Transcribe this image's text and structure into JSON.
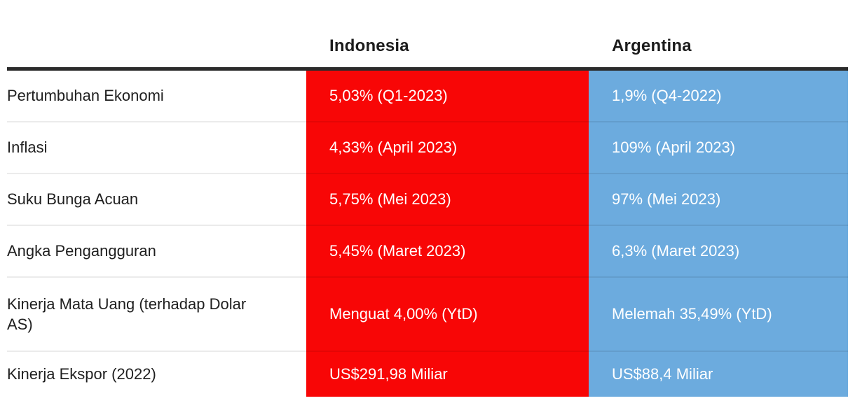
{
  "chart_data": {
    "type": "table",
    "title": "",
    "columns": [
      "",
      "Indonesia",
      "Argentina"
    ],
    "rows": [
      [
        "Pertumbuhan Ekonomi",
        "5,03% (Q1-2023)",
        "1,9% (Q4-2022)"
      ],
      [
        "Inflasi",
        "4,33% (April 2023)",
        "109% (April 2023)"
      ],
      [
        "Suku Bunga Acuan",
        "5,75% (Mei 2023)",
        "97% (Mei 2023)"
      ],
      [
        "Angka Pengangguran",
        "5,45% (Maret 2023)",
        "6,3% (Maret 2023)"
      ],
      [
        "Kinerja Mata Uang (terhadap Dolar AS)",
        "Menguat 4,00% (YtD)",
        "Melemah 35,49% (YtD)"
      ],
      [
        "Kinerja Ekspor (2022)",
        "US$291,98 Miliar",
        "US$88,4 Miliar"
      ]
    ],
    "layout": {
      "indonesia_column_highlight": "red",
      "argentina_column_highlight": "blue",
      "grid": "horizontal row dividers only",
      "header_rule": "thick dark line under header row"
    }
  },
  "header": {
    "indonesia": "Indonesia",
    "argentina": "Argentina"
  },
  "rows": [
    {
      "label": "Pertumbuhan Ekonomi",
      "indonesia": "5,03% (Q1-2023)",
      "argentina": "1,9% (Q4-2022)"
    },
    {
      "label": "Inflasi",
      "indonesia": "4,33% (April 2023)",
      "argentina": "109% (April 2023)"
    },
    {
      "label": "Suku Bunga Acuan",
      "indonesia": "5,75% (Mei 2023)",
      "argentina": "97% (Mei 2023)"
    },
    {
      "label": "Angka Pengangguran",
      "indonesia": "5,45% (Maret 2023)",
      "argentina": "6,3% (Maret 2023)"
    },
    {
      "label": "Kinerja Mata Uang (terhadap Dolar AS)",
      "indonesia": "Menguat 4,00% (YtD)",
      "argentina": "Melemah 35,49% (YtD)"
    },
    {
      "label": "Kinerja Ekspor (2022)",
      "indonesia": "US$291,98 Miliar",
      "argentina": "US$88,4 Miliar"
    }
  ],
  "colors": {
    "indonesia_bg": "#f80606",
    "argentina_bg": "#6cabde",
    "value_text": "#ffffff",
    "label_text": "#1f1f1f",
    "header_text": "#1c1c1c",
    "header_rule": "#2b2b2b",
    "row_divider": "rgba(0,0,0,0.08)"
  }
}
